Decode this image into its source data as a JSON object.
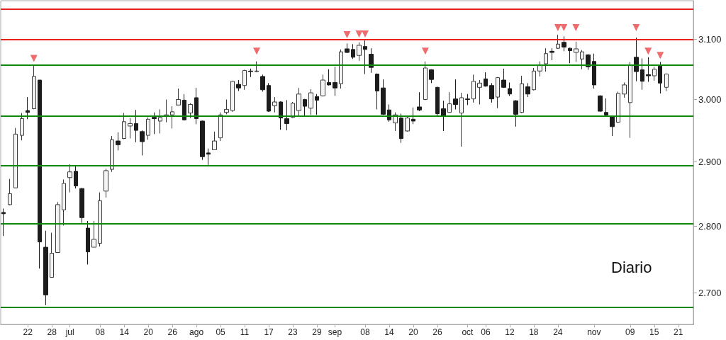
{
  "chart_data": {
    "type": "candlestick",
    "categories": [
      null,
      null,
      null,
      null,
      "22",
      null,
      null,
      null,
      "28",
      null,
      null,
      "jul",
      null,
      null,
      null,
      null,
      "08",
      null,
      null,
      null,
      "14",
      null,
      null,
      null,
      "20",
      null,
      null,
      null,
      "26",
      null,
      null,
      null,
      "ago",
      null,
      null,
      null,
      "05",
      null,
      null,
      null,
      "11",
      null,
      null,
      null,
      "17",
      null,
      null,
      null,
      "23",
      null,
      null,
      null,
      "29",
      null,
      null,
      "sep",
      null,
      null,
      null,
      null,
      "08",
      null,
      null,
      null,
      "14",
      null,
      null,
      null,
      "20",
      null,
      null,
      null,
      "26",
      null,
      null,
      null,
      null,
      "oct",
      null,
      null,
      "06",
      null,
      null,
      null,
      "12",
      null,
      null,
      null,
      "18",
      null,
      null,
      null,
      "24",
      null,
      null,
      null,
      null,
      null,
      "nov",
      null,
      null,
      null,
      null,
      null,
      "09",
      null,
      null,
      null,
      "15",
      null,
      null,
      null,
      "21",
      null,
      null
    ],
    "ohlc": [
      [
        2821,
        2827,
        2785,
        2819
      ],
      [
        2833,
        2873,
        2832,
        2850
      ],
      [
        2859,
        2954,
        2859,
        2944
      ],
      [
        2942,
        2978,
        2934,
        2969
      ],
      [
        2982,
        3004,
        2968,
        2979
      ],
      [
        2985,
        3056,
        2984,
        3038
      ],
      [
        3032,
        3032,
        2736,
        2776
      ],
      [
        2768,
        2793,
        2682,
        2697
      ],
      [
        2723,
        2790,
        2723,
        2759
      ],
      [
        2760,
        2837,
        2760,
        2833
      ],
      [
        2825,
        2872,
        2801,
        2866
      ],
      [
        2875,
        2896,
        2852,
        2884
      ],
      [
        2885,
        2893,
        2858,
        2862
      ],
      [
        2858,
        2859,
        2805,
        2813
      ],
      [
        2797,
        2808,
        2742,
        2761
      ],
      [
        2768,
        2808,
        2768,
        2780
      ],
      [
        2774,
        2852,
        2769,
        2839
      ],
      [
        2854,
        2889,
        2844,
        2886
      ],
      [
        2888,
        2941,
        2884,
        2935
      ],
      [
        2933,
        2947,
        2918,
        2927
      ],
      [
        2937,
        2978,
        2936,
        2964
      ],
      [
        2957,
        2970,
        2937,
        2961
      ],
      [
        2961,
        2983,
        2931,
        2950
      ],
      [
        2948,
        2950,
        2910,
        2932
      ],
      [
        2942,
        2971,
        2935,
        2968
      ],
      [
        2971,
        2979,
        2944,
        2969
      ],
      [
        2965,
        2984,
        2945,
        2971
      ],
      [
        2973,
        3000,
        2963,
        2975
      ],
      [
        2975,
        2989,
        2953,
        2980
      ],
      [
        2991,
        3018,
        2991,
        3000
      ],
      [
        2999,
        3009,
        2966,
        2967
      ],
      [
        2978,
        2994,
        2970,
        2992
      ],
      [
        3003,
        3019,
        2960,
        2969
      ],
      [
        2965,
        2966,
        2903,
        2908
      ],
      [
        2914,
        2921,
        2895,
        2912
      ],
      [
        2919,
        2948,
        2919,
        2933
      ],
      [
        2938,
        2979,
        2933,
        2975
      ],
      [
        2979,
        3000,
        2976,
        2984
      ],
      [
        2982,
        3031,
        2980,
        3030
      ],
      [
        3025,
        3032,
        3014,
        3019
      ],
      [
        3023,
        3049,
        3016,
        3048
      ],
      [
        3047,
        3051,
        3037,
        3046
      ],
      [
        3046,
        3063,
        3045,
        3047
      ],
      [
        3038,
        3041,
        3013,
        3016
      ],
      [
        3023,
        3027,
        2980,
        2981
      ],
      [
        2990,
        3004,
        2979,
        2996
      ],
      [
        2996,
        2997,
        2951,
        2970
      ],
      [
        2969,
        2999,
        2950,
        2961
      ],
      [
        2971,
        2996,
        2970,
        2994
      ],
      [
        2982,
        3019,
        2972,
        3009
      ],
      [
        3000,
        3001,
        2972,
        2989
      ],
      [
        2986,
        3017,
        2975,
        3011
      ],
      [
        3005,
        3009,
        2975,
        2999
      ],
      [
        3006,
        3041,
        3005,
        3032
      ],
      [
        3028,
        3050,
        3023,
        3024
      ],
      [
        3028,
        3054,
        3006,
        3019
      ],
      [
        3026,
        3083,
        3018,
        3079
      ],
      [
        3084,
        3093,
        3077,
        3078
      ],
      [
        3083,
        3092,
        3067,
        3070
      ],
      [
        3073,
        3095,
        3064,
        3090
      ],
      [
        3088,
        3098,
        3042,
        3083
      ],
      [
        3075,
        3085,
        3044,
        3053
      ],
      [
        3042,
        3043,
        2984,
        3014
      ],
      [
        3019,
        3033,
        2975,
        2976
      ],
      [
        2983,
        2992,
        2964,
        2967
      ],
      [
        2962,
        2979,
        2949,
        2975
      ],
      [
        2970,
        2977,
        2930,
        2937
      ],
      [
        2949,
        2972,
        2948,
        2970
      ],
      [
        2968,
        2987,
        2960,
        2965
      ],
      [
        2988,
        3012,
        2981,
        2983
      ],
      [
        3000,
        3063,
        2999,
        3052
      ],
      [
        3049,
        3050,
        3027,
        3033
      ],
      [
        3020,
        3021,
        2972,
        2977
      ],
      [
        2985,
        2998,
        2949,
        2973
      ],
      [
        2979,
        3012,
        2979,
        2993
      ],
      [
        3001,
        3033,
        2984,
        2992
      ],
      [
        2978,
        3011,
        2924,
        3003
      ],
      [
        3001,
        3009,
        2991,
        3000
      ],
      [
        3001,
        3041,
        2995,
        3030
      ],
      [
        3020,
        3032,
        2992,
        3027
      ],
      [
        3034,
        3045,
        3021,
        3022
      ],
      [
        3023,
        3027,
        2995,
        3001
      ],
      [
        3004,
        3037,
        2986,
        3036
      ],
      [
        3032,
        3051,
        3019,
        3020
      ],
      [
        3018,
        3028,
        3006,
        3009
      ],
      [
        2998,
        2999,
        2956,
        2976
      ],
      [
        2979,
        3039,
        2978,
        3026
      ],
      [
        3021,
        3027,
        3004,
        3009
      ],
      [
        3016,
        3052,
        3015,
        3047
      ],
      [
        3047,
        3063,
        3038,
        3056
      ],
      [
        3059,
        3085,
        3046,
        3076
      ],
      [
        3080,
        3085,
        3065,
        3078
      ],
      [
        3085,
        3108,
        3084,
        3092
      ],
      [
        3095,
        3105,
        3080,
        3087
      ],
      [
        3085,
        3086,
        3060,
        3081
      ],
      [
        3078,
        3096,
        3062,
        3084
      ],
      [
        3067,
        3082,
        3050,
        3079
      ],
      [
        3074,
        3075,
        3049,
        3054
      ],
      [
        3063,
        3076,
        3018,
        3024
      ],
      [
        3006,
        3007,
        2980,
        2981
      ],
      [
        2979,
        3002,
        2973,
        2975
      ],
      [
        2972,
        2973,
        2941,
        2956
      ],
      [
        2963,
        3013,
        2962,
        3010
      ],
      [
        3009,
        3028,
        3003,
        3024
      ],
      [
        2995,
        3062,
        2938,
        3056
      ],
      [
        3070,
        3103,
        3030,
        3046
      ],
      [
        3049,
        3068,
        3016,
        3030
      ],
      [
        3041,
        3070,
        3029,
        3039
      ],
      [
        3039,
        3054,
        3031,
        3050
      ],
      [
        3055,
        3062,
        3010,
        3027
      ],
      [
        3020,
        3043,
        3014,
        3042
      ],
      null,
      null,
      null,
      null
    ],
    "series": [
      {
        "type": "scatter",
        "color": "#e8474a",
        "marker": "triangle",
        "values": [
          null,
          null,
          null,
          null,
          null,
          3068,
          null,
          null,
          null,
          null,
          null,
          null,
          null,
          null,
          null,
          null,
          null,
          null,
          null,
          null,
          null,
          null,
          null,
          null,
          null,
          null,
          null,
          null,
          null,
          null,
          null,
          null,
          null,
          null,
          null,
          null,
          null,
          null,
          null,
          null,
          null,
          null,
          3080,
          null,
          null,
          null,
          null,
          null,
          null,
          null,
          null,
          null,
          null,
          null,
          null,
          null,
          null,
          3108,
          null,
          3109,
          3109,
          null,
          null,
          null,
          null,
          null,
          null,
          null,
          null,
          null,
          3080,
          null,
          null,
          null,
          null,
          null,
          null,
          null,
          null,
          null,
          null,
          null,
          null,
          null,
          null,
          null,
          null,
          null,
          null,
          null,
          null,
          null,
          3120,
          3120,
          null,
          3120,
          null,
          null,
          null,
          null,
          null,
          null,
          null,
          null,
          null,
          3120,
          null,
          3080,
          null,
          3073,
          null,
          null,
          null,
          null,
          null
        ]
      }
    ],
    "ylim": [
      2654,
      3166
    ],
    "yticks": [
      {
        "value": 2700,
        "label": "2.700"
      },
      {
        "value": 2800,
        "label": "2.800"
      },
      {
        "value": 2900,
        "label": "2.900"
      },
      {
        "value": 3000,
        "label": "3.000"
      },
      {
        "value": 3100,
        "label": "3.100"
      }
    ],
    "log": true,
    "ref_lines": [
      {
        "axis": "y",
        "value": 3152,
        "color": "#e8211f"
      },
      {
        "axis": "y",
        "value": 3100,
        "color": "#e8211f"
      },
      {
        "axis": "y",
        "value": 3057,
        "color": "#108810"
      },
      {
        "axis": "y",
        "value": 2973,
        "color": "#108810"
      },
      {
        "axis": "y",
        "value": 2894,
        "color": "#108810"
      },
      {
        "axis": "y",
        "value": 2804,
        "color": "#108810"
      },
      {
        "axis": "y",
        "value": 2679,
        "color": "#108810"
      }
    ],
    "annotations": [
      "Diario"
    ]
  }
}
